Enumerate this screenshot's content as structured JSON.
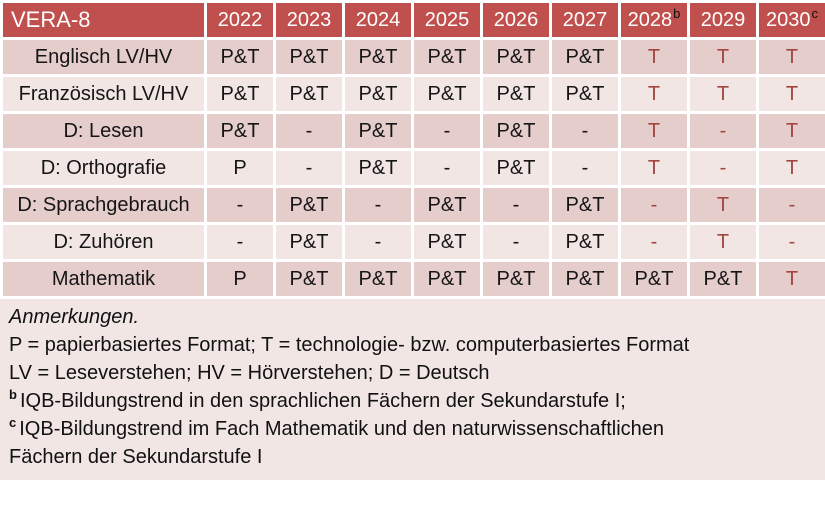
{
  "colors": {
    "header_bg": "#C0504D",
    "band_dark": "#E5CDCC",
    "band_light": "#F2E6E5",
    "red_text": "#A3453F",
    "header_text": "#FFFFFF",
    "body_text": "#151515"
  },
  "table": {
    "title": "VERA-8",
    "columns": [
      {
        "label": "2022"
      },
      {
        "label": "2023"
      },
      {
        "label": "2024"
      },
      {
        "label": "2025"
      },
      {
        "label": "2026"
      },
      {
        "label": "2027"
      },
      {
        "label": "2028",
        "sup": "b"
      },
      {
        "label": "2029"
      },
      {
        "label": "2030",
        "sup": "c"
      }
    ],
    "rows": [
      {
        "label": "Englisch LV/HV",
        "cells": [
          {
            "t": "P&T"
          },
          {
            "t": "P&T"
          },
          {
            "t": "P&T"
          },
          {
            "t": "P&T"
          },
          {
            "t": "P&T"
          },
          {
            "t": "P&T"
          },
          {
            "t": "T",
            "red": true
          },
          {
            "t": "T",
            "red": true
          },
          {
            "t": "T",
            "red": true
          }
        ]
      },
      {
        "label": "Französisch LV/HV",
        "cells": [
          {
            "t": "P&T"
          },
          {
            "t": "P&T"
          },
          {
            "t": "P&T"
          },
          {
            "t": "P&T"
          },
          {
            "t": "P&T"
          },
          {
            "t": "P&T"
          },
          {
            "t": "T",
            "red": true
          },
          {
            "t": "T",
            "red": true
          },
          {
            "t": "T",
            "red": true
          }
        ]
      },
      {
        "label": "D: Lesen",
        "cells": [
          {
            "t": "P&T"
          },
          {
            "t": "-"
          },
          {
            "t": "P&T"
          },
          {
            "t": "-"
          },
          {
            "t": "P&T"
          },
          {
            "t": "-"
          },
          {
            "t": "T",
            "red": true
          },
          {
            "t": "-",
            "red": true
          },
          {
            "t": "T",
            "red": true
          }
        ]
      },
      {
        "label": "D: Orthografie",
        "cells": [
          {
            "t": "P"
          },
          {
            "t": "-"
          },
          {
            "t": "P&T"
          },
          {
            "t": "-"
          },
          {
            "t": "P&T"
          },
          {
            "t": "-"
          },
          {
            "t": "T",
            "red": true
          },
          {
            "t": "-",
            "red": true
          },
          {
            "t": "T",
            "red": true
          }
        ]
      },
      {
        "label": "D: Sprachgebrauch",
        "cells": [
          {
            "t": "-"
          },
          {
            "t": "P&T"
          },
          {
            "t": "-"
          },
          {
            "t": "P&T"
          },
          {
            "t": "-"
          },
          {
            "t": "P&T"
          },
          {
            "t": "-",
            "red": true
          },
          {
            "t": "T",
            "red": true
          },
          {
            "t": "-",
            "red": true
          }
        ]
      },
      {
        "label": "D: Zuhören",
        "cells": [
          {
            "t": "-"
          },
          {
            "t": "P&T"
          },
          {
            "t": "-"
          },
          {
            "t": "P&T"
          },
          {
            "t": "-"
          },
          {
            "t": "P&T"
          },
          {
            "t": "-",
            "red": true
          },
          {
            "t": "T",
            "red": true
          },
          {
            "t": "-",
            "red": true
          }
        ]
      },
      {
        "label": "Mathematik",
        "cells": [
          {
            "t": "P"
          },
          {
            "t": "P&T"
          },
          {
            "t": "P&T"
          },
          {
            "t": "P&T"
          },
          {
            "t": "P&T"
          },
          {
            "t": "P&T"
          },
          {
            "t": "P&T"
          },
          {
            "t": "P&T"
          },
          {
            "t": "T",
            "red": true
          }
        ]
      }
    ]
  },
  "notes": {
    "lines": [
      {
        "text": "Anmerkungen.",
        "italic": true
      },
      {
        "text": "P = papierbasiertes Format; T = technologie- bzw. computerbasiertes Format"
      },
      {
        "text": "LV = Leseverstehen; HV = Hörverstehen; D = Deutsch"
      },
      {
        "sup": "b",
        "text": "IQB-Bildungstrend in den sprachlichen Fächern der Sekundarstufe I;"
      },
      {
        "sup": "c",
        "text": "IQB-Bildungstrend im Fach Mathematik und den naturwissenschaftlichen"
      },
      {
        "text": "Fächern der Sekundarstufe I"
      }
    ]
  }
}
